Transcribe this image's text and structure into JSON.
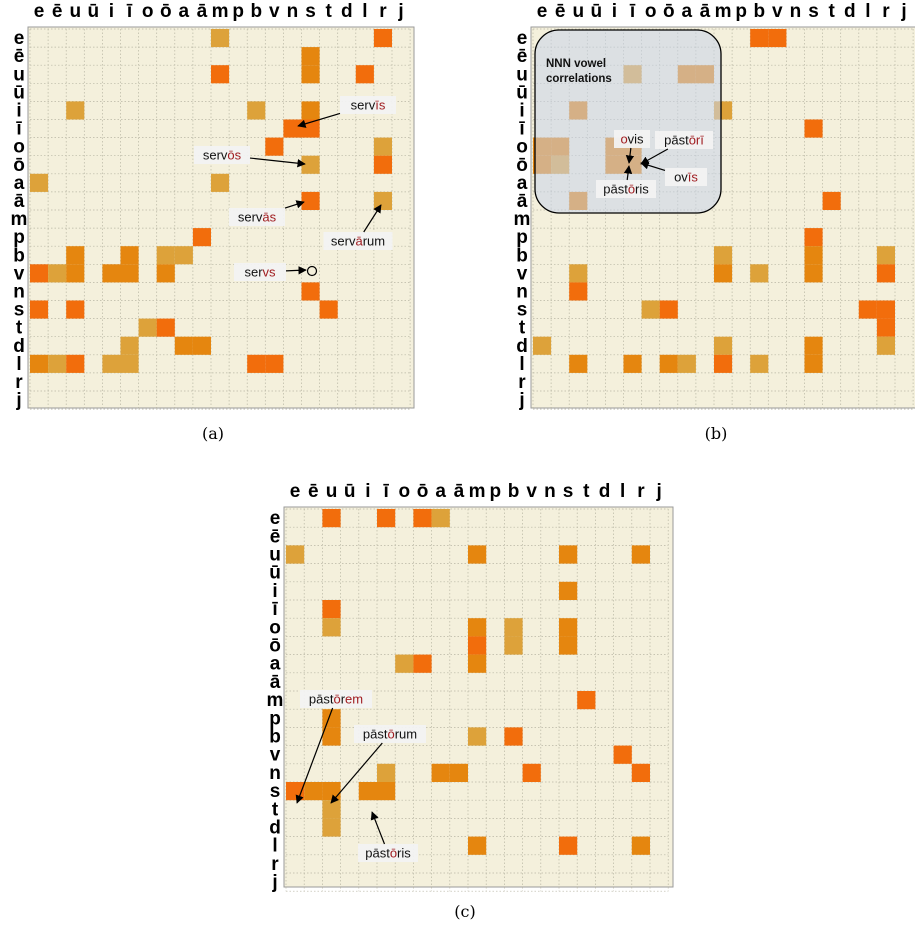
{
  "letters": [
    "e",
    "ē",
    "u",
    "ū",
    "i",
    "ī",
    "o",
    "ō",
    "a",
    "ā",
    "m",
    "p",
    "b",
    "v",
    "n",
    "s",
    "t",
    "d",
    "l",
    "r",
    "j"
  ],
  "colors": {
    "background": "#f4f0dc",
    "grid": "#b8b6a4",
    "bright": "#f26d0c",
    "mid": "#e5860f",
    "pale": "#dda23a",
    "panel_outline": "#9a9a9a",
    "label_text": "#111111",
    "highlight_text": "#a01c20",
    "overlay_fill": "#c9d3ea"
  },
  "panels": [
    {
      "caption": "(a)",
      "cells": [
        {
          "r": 0,
          "c": 10,
          "t": "pale"
        },
        {
          "r": 0,
          "c": 19,
          "t": "bright"
        },
        {
          "r": 1,
          "c": 15,
          "t": "mid"
        },
        {
          "r": 2,
          "c": 10,
          "t": "bright"
        },
        {
          "r": 2,
          "c": 15,
          "t": "mid"
        },
        {
          "r": 2,
          "c": 18,
          "t": "bright"
        },
        {
          "r": 4,
          "c": 2,
          "t": "pale"
        },
        {
          "r": 4,
          "c": 12,
          "t": "pale"
        },
        {
          "r": 4,
          "c": 15,
          "t": "mid"
        },
        {
          "r": 5,
          "c": 14,
          "t": "bright"
        },
        {
          "r": 5,
          "c": 15,
          "t": "bright"
        },
        {
          "r": 6,
          "c": 13,
          "t": "bright"
        },
        {
          "r": 6,
          "c": 19,
          "t": "pale"
        },
        {
          "r": 7,
          "c": 15,
          "t": "pale"
        },
        {
          "r": 7,
          "c": 19,
          "t": "bright"
        },
        {
          "r": 8,
          "c": 0,
          "t": "pale"
        },
        {
          "r": 8,
          "c": 10,
          "t": "pale"
        },
        {
          "r": 9,
          "c": 15,
          "t": "bright"
        },
        {
          "r": 9,
          "c": 19,
          "t": "pale"
        },
        {
          "r": 11,
          "c": 9,
          "t": "bright"
        },
        {
          "r": 12,
          "c": 2,
          "t": "mid"
        },
        {
          "r": 12,
          "c": 5,
          "t": "mid"
        },
        {
          "r": 12,
          "c": 7,
          "t": "pale"
        },
        {
          "r": 12,
          "c": 8,
          "t": "pale"
        },
        {
          "r": 13,
          "c": 0,
          "t": "bright"
        },
        {
          "r": 13,
          "c": 1,
          "t": "pale"
        },
        {
          "r": 13,
          "c": 2,
          "t": "mid"
        },
        {
          "r": 13,
          "c": 4,
          "t": "mid"
        },
        {
          "r": 13,
          "c": 5,
          "t": "mid"
        },
        {
          "r": 13,
          "c": 7,
          "t": "mid"
        },
        {
          "r": 14,
          "c": 15,
          "t": "bright"
        },
        {
          "r": 15,
          "c": 0,
          "t": "bright"
        },
        {
          "r": 15,
          "c": 2,
          "t": "bright"
        },
        {
          "r": 15,
          "c": 16,
          "t": "bright"
        },
        {
          "r": 16,
          "c": 6,
          "t": "pale"
        },
        {
          "r": 16,
          "c": 7,
          "t": "bright"
        },
        {
          "r": 17,
          "c": 5,
          "t": "pale"
        },
        {
          "r": 17,
          "c": 8,
          "t": "mid"
        },
        {
          "r": 17,
          "c": 9,
          "t": "mid"
        },
        {
          "r": 18,
          "c": 0,
          "t": "mid"
        },
        {
          "r": 18,
          "c": 1,
          "t": "pale"
        },
        {
          "r": 18,
          "c": 2,
          "t": "bright"
        },
        {
          "r": 18,
          "c": 4,
          "t": "pale"
        },
        {
          "r": 18,
          "c": 5,
          "t": "pale"
        },
        {
          "r": 18,
          "c": 12,
          "t": "bright"
        },
        {
          "r": 18,
          "c": 13,
          "t": "bright"
        }
      ],
      "annotations": [
        {
          "parts": [
            {
              "s": "serv",
              "h": false
            },
            {
              "s": "īs",
              "h": true
            }
          ]
        },
        {
          "parts": [
            {
              "s": "serv",
              "h": false
            },
            {
              "s": "ōs",
              "h": true
            }
          ]
        },
        {
          "parts": [
            {
              "s": "serv",
              "h": false
            },
            {
              "s": "ās",
              "h": true
            }
          ]
        },
        {
          "parts": [
            {
              "s": "serv",
              "h": false
            },
            {
              "s": "ā",
              "h": true
            },
            {
              "s": "rum",
              "h": false
            }
          ]
        },
        {
          "parts": [
            {
              "s": "ser",
              "h": false
            },
            {
              "s": "vs",
              "h": true
            }
          ]
        }
      ]
    },
    {
      "caption": "(b)",
      "overlay_label": [
        "NNN vowel",
        "correlations"
      ],
      "cells": [
        {
          "r": 0,
          "c": 12,
          "t": "bright"
        },
        {
          "r": 0,
          "c": 13,
          "t": "bright"
        },
        {
          "r": 2,
          "c": 5,
          "t": "pale"
        },
        {
          "r": 2,
          "c": 8,
          "t": "mid"
        },
        {
          "r": 2,
          "c": 9,
          "t": "mid"
        },
        {
          "r": 4,
          "c": 2,
          "t": "mid"
        },
        {
          "r": 4,
          "c": 10,
          "t": "pale"
        },
        {
          "r": 5,
          "c": 15,
          "t": "bright"
        },
        {
          "r": 6,
          "c": 0,
          "t": "mid"
        },
        {
          "r": 6,
          "c": 1,
          "t": "mid"
        },
        {
          "r": 6,
          "c": 4,
          "t": "mid"
        },
        {
          "r": 6,
          "c": 5,
          "t": "mid"
        },
        {
          "r": 7,
          "c": 0,
          "t": "mid"
        },
        {
          "r": 7,
          "c": 1,
          "t": "pale"
        },
        {
          "r": 7,
          "c": 4,
          "t": "mid"
        },
        {
          "r": 7,
          "c": 5,
          "t": "mid"
        },
        {
          "r": 9,
          "c": 2,
          "t": "mid"
        },
        {
          "r": 9,
          "c": 16,
          "t": "bright"
        },
        {
          "r": 11,
          "c": 15,
          "t": "bright"
        },
        {
          "r": 12,
          "c": 10,
          "t": "pale"
        },
        {
          "r": 12,
          "c": 15,
          "t": "mid"
        },
        {
          "r": 12,
          "c": 19,
          "t": "pale"
        },
        {
          "r": 13,
          "c": 2,
          "t": "pale"
        },
        {
          "r": 13,
          "c": 10,
          "t": "mid"
        },
        {
          "r": 13,
          "c": 12,
          "t": "pale"
        },
        {
          "r": 13,
          "c": 15,
          "t": "mid"
        },
        {
          "r": 13,
          "c": 19,
          "t": "bright"
        },
        {
          "r": 14,
          "c": 2,
          "t": "bright"
        },
        {
          "r": 15,
          "c": 6,
          "t": "pale"
        },
        {
          "r": 15,
          "c": 7,
          "t": "bright"
        },
        {
          "r": 15,
          "c": 18,
          "t": "bright"
        },
        {
          "r": 15,
          "c": 19,
          "t": "bright"
        },
        {
          "r": 16,
          "c": 19,
          "t": "bright"
        },
        {
          "r": 17,
          "c": 0,
          "t": "pale"
        },
        {
          "r": 17,
          "c": 10,
          "t": "pale"
        },
        {
          "r": 17,
          "c": 15,
          "t": "mid"
        },
        {
          "r": 17,
          "c": 19,
          "t": "pale"
        },
        {
          "r": 18,
          "c": 2,
          "t": "mid"
        },
        {
          "r": 18,
          "c": 5,
          "t": "mid"
        },
        {
          "r": 18,
          "c": 7,
          "t": "mid"
        },
        {
          "r": 18,
          "c": 8,
          "t": "pale"
        },
        {
          "r": 18,
          "c": 10,
          "t": "bright"
        },
        {
          "r": 18,
          "c": 12,
          "t": "pale"
        },
        {
          "r": 18,
          "c": 15,
          "t": "mid"
        }
      ],
      "annotations": [
        {
          "parts": [
            {
              "s": "o",
              "h": true
            },
            {
              "s": "vis",
              "h": false
            }
          ]
        },
        {
          "parts": [
            {
              "s": "pāst",
              "h": false
            },
            {
              "s": "ōrī",
              "h": true
            }
          ]
        },
        {
          "parts": [
            {
              "s": "ov",
              "h": false
            },
            {
              "s": "īs",
              "h": true
            }
          ]
        },
        {
          "parts": [
            {
              "s": "pāst",
              "h": false
            },
            {
              "s": "ō",
              "h": true
            },
            {
              "s": "ris",
              "h": false
            }
          ]
        }
      ]
    },
    {
      "caption": "(c)",
      "cells": [
        {
          "r": 0,
          "c": 2,
          "t": "bright"
        },
        {
          "r": 0,
          "c": 5,
          "t": "bright"
        },
        {
          "r": 0,
          "c": 7,
          "t": "bright"
        },
        {
          "r": 0,
          "c": 8,
          "t": "pale"
        },
        {
          "r": 2,
          "c": 0,
          "t": "pale"
        },
        {
          "r": 2,
          "c": 10,
          "t": "mid"
        },
        {
          "r": 2,
          "c": 15,
          "t": "mid"
        },
        {
          "r": 2,
          "c": 19,
          "t": "mid"
        },
        {
          "r": 4,
          "c": 15,
          "t": "mid"
        },
        {
          "r": 5,
          "c": 2,
          "t": "bright"
        },
        {
          "r": 6,
          "c": 2,
          "t": "pale"
        },
        {
          "r": 6,
          "c": 10,
          "t": "mid"
        },
        {
          "r": 6,
          "c": 12,
          "t": "pale"
        },
        {
          "r": 6,
          "c": 15,
          "t": "mid"
        },
        {
          "r": 7,
          "c": 10,
          "t": "bright"
        },
        {
          "r": 7,
          "c": 12,
          "t": "pale"
        },
        {
          "r": 7,
          "c": 15,
          "t": "mid"
        },
        {
          "r": 8,
          "c": 6,
          "t": "pale"
        },
        {
          "r": 8,
          "c": 7,
          "t": "bright"
        },
        {
          "r": 8,
          "c": 10,
          "t": "mid"
        },
        {
          "r": 10,
          "c": 16,
          "t": "bright"
        },
        {
          "r": 11,
          "c": 2,
          "t": "mid"
        },
        {
          "r": 12,
          "c": 2,
          "t": "mid"
        },
        {
          "r": 12,
          "c": 10,
          "t": "pale"
        },
        {
          "r": 12,
          "c": 12,
          "t": "bright"
        },
        {
          "r": 13,
          "c": 18,
          "t": "bright"
        },
        {
          "r": 14,
          "c": 5,
          "t": "pale"
        },
        {
          "r": 14,
          "c": 8,
          "t": "mid"
        },
        {
          "r": 14,
          "c": 9,
          "t": "mid"
        },
        {
          "r": 14,
          "c": 13,
          "t": "bright"
        },
        {
          "r": 14,
          "c": 19,
          "t": "bright"
        },
        {
          "r": 15,
          "c": 0,
          "t": "bright"
        },
        {
          "r": 15,
          "c": 1,
          "t": "mid"
        },
        {
          "r": 15,
          "c": 2,
          "t": "mid"
        },
        {
          "r": 15,
          "c": 4,
          "t": "mid"
        },
        {
          "r": 15,
          "c": 5,
          "t": "mid"
        },
        {
          "r": 16,
          "c": 2,
          "t": "pale"
        },
        {
          "r": 17,
          "c": 2,
          "t": "pale"
        },
        {
          "r": 18,
          "c": 10,
          "t": "mid"
        },
        {
          "r": 18,
          "c": 15,
          "t": "bright"
        },
        {
          "r": 18,
          "c": 19,
          "t": "mid"
        }
      ],
      "annotations": [
        {
          "parts": [
            {
              "s": "pāst",
              "h": false
            },
            {
              "s": "ō",
              "h": true
            },
            {
              "s": "r",
              "h": false
            },
            {
              "s": "em",
              "h": true
            }
          ]
        },
        {
          "parts": [
            {
              "s": "pāst",
              "h": false
            },
            {
              "s": "ō",
              "h": true
            },
            {
              "s": "rum",
              "h": false
            }
          ]
        },
        {
          "parts": [
            {
              "s": "pāst",
              "h": false
            },
            {
              "s": "ō",
              "h": true
            },
            {
              "s": "ris",
              "h": false
            }
          ]
        }
      ]
    }
  ]
}
